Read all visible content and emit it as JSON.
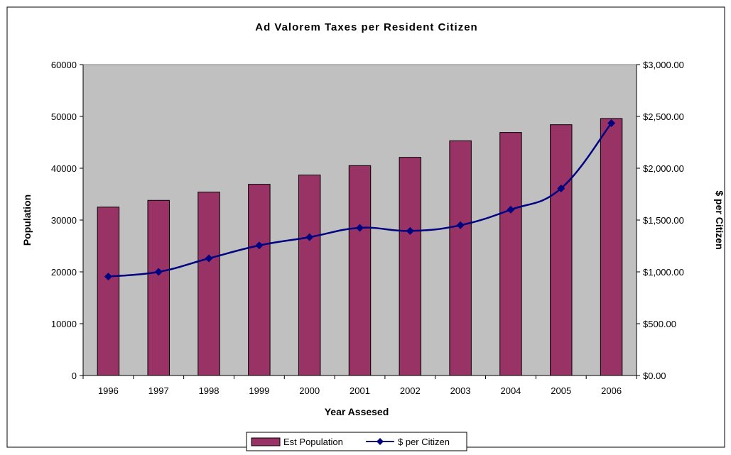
{
  "chart_data": {
    "type": "bar",
    "title": "Ad Valorem Taxes per Resident Citizen",
    "xlabel": "Year Assesed",
    "ylabel": "Population",
    "y2label": "$ per Citizen",
    "categories": [
      "1996",
      "1997",
      "1998",
      "1999",
      "2000",
      "2001",
      "2002",
      "2003",
      "2004",
      "2005",
      "2006"
    ],
    "ylim": [
      0,
      60000
    ],
    "y_ticks": [
      "0",
      "10000",
      "20000",
      "30000",
      "40000",
      "50000",
      "60000"
    ],
    "y2lim": [
      0,
      3000
    ],
    "y2_ticks": [
      "$0.00",
      "$500.00",
      "$1,000.00",
      "$1,500.00",
      "$2,000.00",
      "$2,500.00",
      "$3,000.00"
    ],
    "grid": false,
    "legend_position": "bottom",
    "series": [
      {
        "name": "Est Population",
        "type": "bar",
        "axis": "left",
        "color": "#993366",
        "values": [
          32500,
          33800,
          35400,
          36900,
          38700,
          40500,
          42100,
          45300,
          46900,
          48400,
          49600
        ]
      },
      {
        "name": "$ per Citizen",
        "type": "line",
        "axis": "right",
        "color": "#000080",
        "marker": "diamond",
        "values": [
          955,
          1000,
          1130,
          1255,
          1335,
          1425,
          1395,
          1450,
          1600,
          1805,
          2435
        ]
      }
    ],
    "plot_background": "#c0c0c0"
  }
}
